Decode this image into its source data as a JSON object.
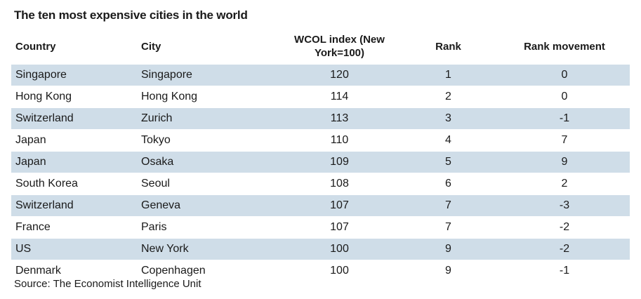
{
  "chart_data": {
    "type": "table",
    "title": "The ten most expensive cities in the world",
    "columns": [
      "Country",
      "City",
      "WCOL index (New York=100)",
      "Rank",
      "Rank movement"
    ],
    "rows": [
      [
        "Singapore",
        "Singapore",
        "120",
        "1",
        "0"
      ],
      [
        "Hong Kong",
        "Hong Kong",
        "114",
        "2",
        "0"
      ],
      [
        "Switzerland",
        "Zurich",
        "113",
        "3",
        "-1"
      ],
      [
        "Japan",
        "Tokyo",
        "110",
        "4",
        "7"
      ],
      [
        "Japan",
        "Osaka",
        "109",
        "5",
        "9"
      ],
      [
        "South Korea",
        "Seoul",
        "108",
        "6",
        "2"
      ],
      [
        "Switzerland",
        "Geneva",
        "107",
        "7",
        "-3"
      ],
      [
        "France",
        "Paris",
        "107",
        "7",
        "-2"
      ],
      [
        "US",
        "New York",
        "100",
        "9",
        "-2"
      ],
      [
        "Denmark",
        "Copenhagen",
        "100",
        "9",
        "-1"
      ]
    ],
    "source": "Source: The Economist Intelligence Unit"
  },
  "colors": {
    "band": "#cfdde8",
    "text": "#1a1a1a"
  }
}
